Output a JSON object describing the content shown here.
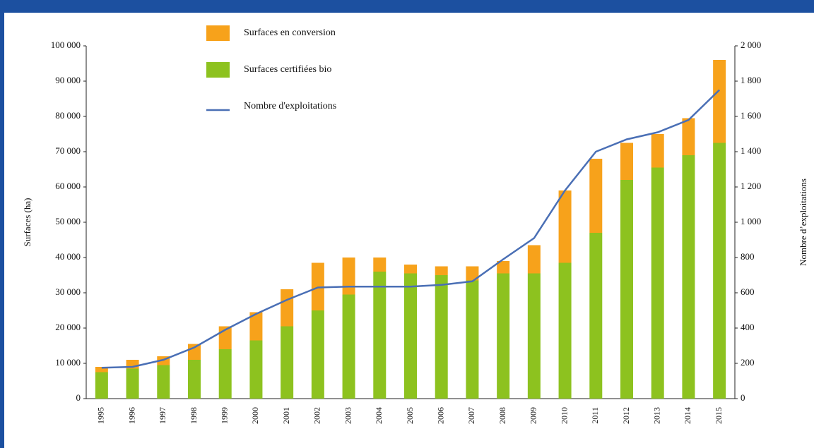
{
  "chart_data": {
    "type": "bar",
    "stacked": true,
    "y_label": "Surfaces (ha)",
    "y2_label": "Nombre d’exploitations",
    "categories": [
      "1995",
      "1996",
      "1997",
      "1998",
      "1999",
      "2000",
      "2001",
      "2002",
      "2003",
      "2004",
      "2005",
      "2006",
      "2007",
      "2008",
      "2009",
      "2010",
      "2011",
      "2012",
      "2013",
      "2014",
      "2015"
    ],
    "series": [
      {
        "name": "Surfaces en conversion",
        "type": "bar",
        "color": "#f7a21b",
        "values": [
          1500,
          2500,
          2500,
          4500,
          6500,
          8000,
          10500,
          13500,
          10500,
          4000,
          2500,
          2500,
          4000,
          3500,
          8000,
          20500,
          21000,
          10500,
          9500,
          10500,
          23500
        ]
      },
      {
        "name": "Surfaces certifiées bio",
        "type": "bar",
        "color": "#8dc21f",
        "values": [
          7500,
          8500,
          9500,
          11000,
          14000,
          16500,
          20500,
          25000,
          29500,
          36000,
          35500,
          35000,
          33500,
          35500,
          35500,
          38500,
          47000,
          62000,
          65500,
          69000,
          72500
        ]
      },
      {
        "name": "Nombre d'exploitations",
        "type": "line",
        "axis": "y2",
        "color": "#4a6fb5",
        "values": [
          175,
          180,
          220,
          290,
          390,
          480,
          560,
          630,
          635,
          635,
          635,
          645,
          665,
          790,
          910,
          1180,
          1400,
          1470,
          1510,
          1580,
          1750
        ]
      }
    ],
    "ylim": [
      0,
      100000
    ],
    "yticks": [
      0,
      {
        "value": 10000,
        "label": "10 000"
      },
      {
        "value": 20000,
        "label": "20 000"
      },
      {
        "value": 30000,
        "label": "30 000"
      },
      {
        "value": 40000,
        "label": "40 000"
      },
      {
        "value": 50000,
        "label": "50 000"
      },
      {
        "value": 60000,
        "label": "60 000"
      },
      {
        "value": 70000,
        "label": "70 000"
      },
      {
        "value": 80000,
        "label": "80 000"
      },
      {
        "value": 90000,
        "label": "90 000"
      },
      {
        "value": 100000,
        "label": "100 000"
      }
    ],
    "y2lim": [
      0,
      2000
    ],
    "y2ticks": [
      0,
      200,
      400,
      600,
      800,
      {
        "value": 1000,
        "label": "1 000"
      },
      {
        "value": 1200,
        "label": "1 200"
      },
      {
        "value": 1400,
        "label": "1 400"
      },
      {
        "value": 1600,
        "label": "1 600"
      },
      {
        "value": 1800,
        "label": "1 800"
      },
      {
        "value": 2000,
        "label": "2 000"
      }
    ],
    "grid": false
  }
}
